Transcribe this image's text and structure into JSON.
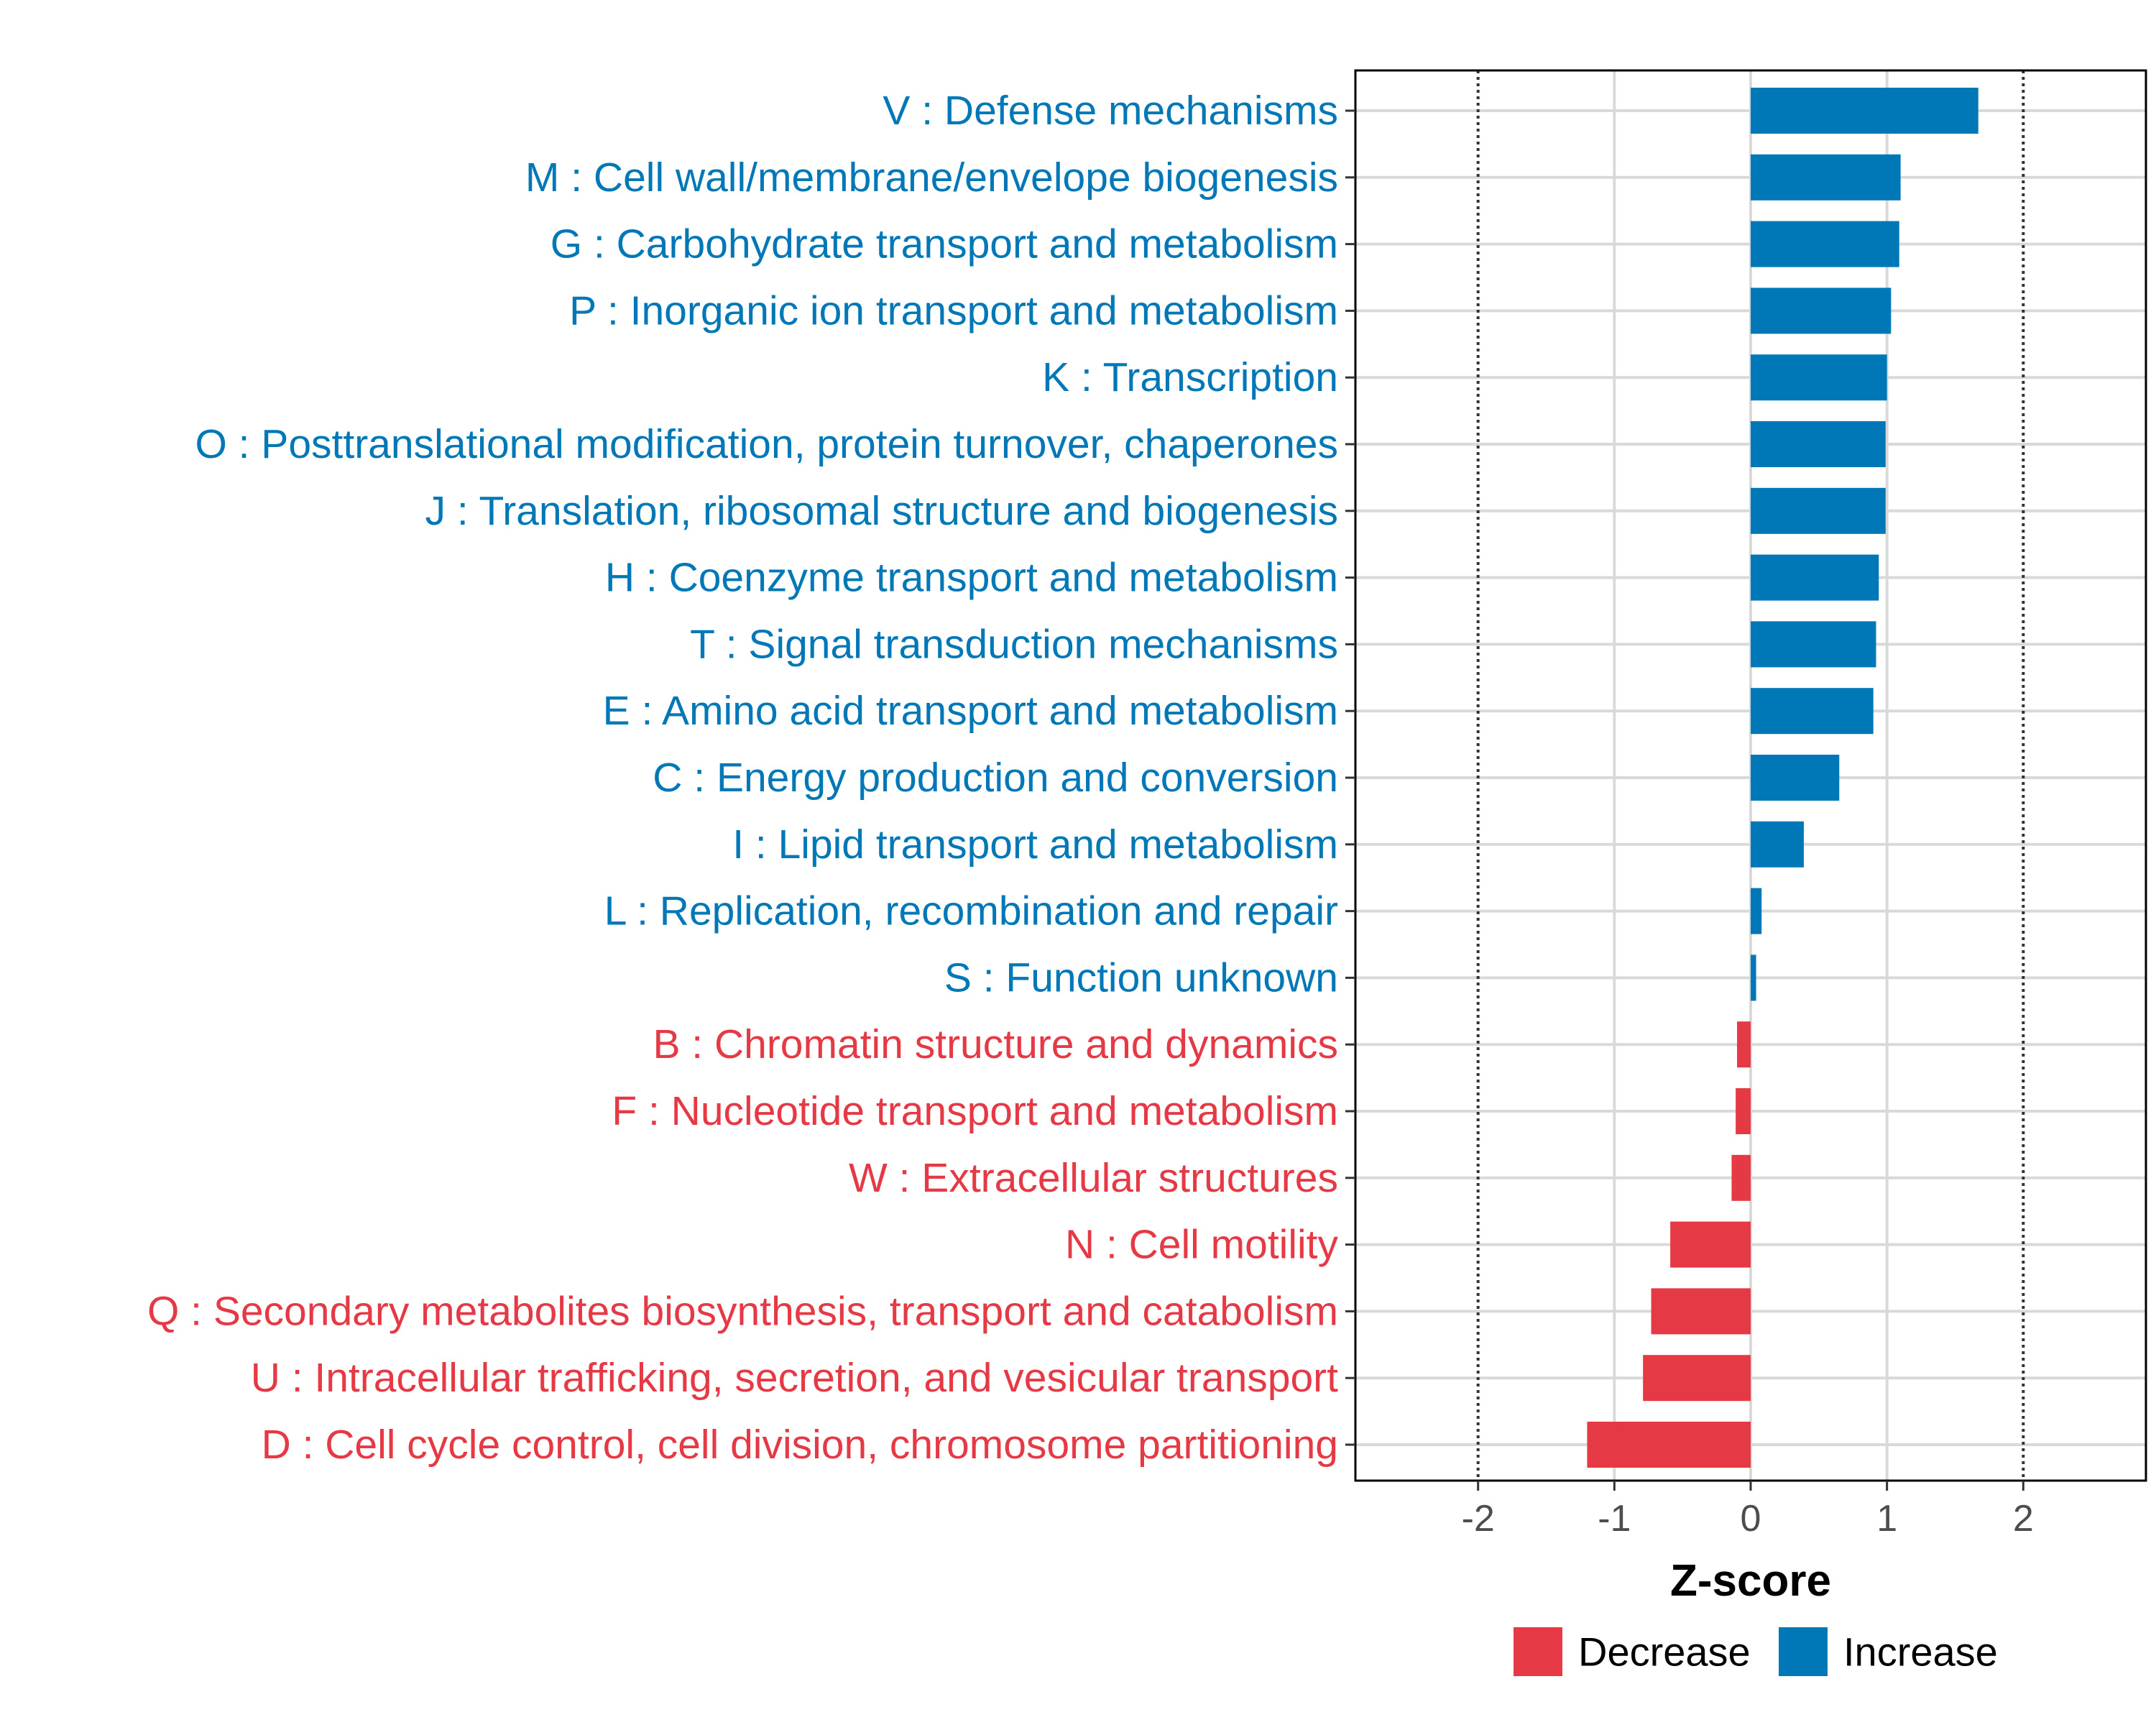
{
  "chart_data": {
    "type": "bar",
    "orientation": "horizontal",
    "categories": [
      "V : Defense mechanisms",
      "M : Cell wall/membrane/envelope biogenesis",
      "G : Carbohydrate transport and metabolism",
      "P : Inorganic ion transport and metabolism",
      "K : Transcription",
      "O : Posttranslational modification, protein turnover, chaperones",
      "J : Translation, ribosomal structure and biogenesis",
      "H : Coenzyme transport and metabolism",
      "T : Signal transduction mechanisms",
      "E : Amino acid transport and metabolism",
      "C : Energy production and conversion",
      "I : Lipid transport and metabolism",
      "L : Replication, recombination and repair",
      "S : Function unknown",
      "B : Chromatin structure and dynamics",
      "F : Nucleotide transport and metabolism",
      "W : Extracellular structures",
      "N : Cell motility",
      "Q : Secondary metabolites biosynthesis, transport and catabolism",
      "U : Intracellular trafficking, secretion, and vesicular transport",
      "D : Cell cycle control, cell division, chromosome partitioning"
    ],
    "values": [
      1.67,
      1.1,
      1.09,
      1.03,
      1.0,
      0.99,
      0.99,
      0.94,
      0.92,
      0.9,
      0.65,
      0.39,
      0.08,
      0.04,
      -0.1,
      -0.11,
      -0.14,
      -0.59,
      -0.73,
      -0.79,
      -1.2
    ],
    "groups": [
      "Increase",
      "Increase",
      "Increase",
      "Increase",
      "Increase",
      "Increase",
      "Increase",
      "Increase",
      "Increase",
      "Increase",
      "Increase",
      "Increase",
      "Increase",
      "Increase",
      "Decrease",
      "Decrease",
      "Decrease",
      "Decrease",
      "Decrease",
      "Decrease",
      "Decrease"
    ],
    "xlabel": "Z-score",
    "xlim": [
      -2.9,
      2.9
    ],
    "xticks": [
      -2,
      -1,
      0,
      1,
      2
    ],
    "xtick_labels": [
      "-2",
      "-1",
      "0",
      "1",
      "2"
    ],
    "reference_lines": [
      -2,
      2
    ],
    "grid": true,
    "legend": {
      "position": "bottom",
      "entries": [
        {
          "name": "Decrease",
          "color": "#e63946"
        },
        {
          "name": "Increase",
          "color": "#0077b6"
        }
      ]
    },
    "colors": {
      "Decrease": "#e63946",
      "Increase": "#0077b6"
    }
  }
}
